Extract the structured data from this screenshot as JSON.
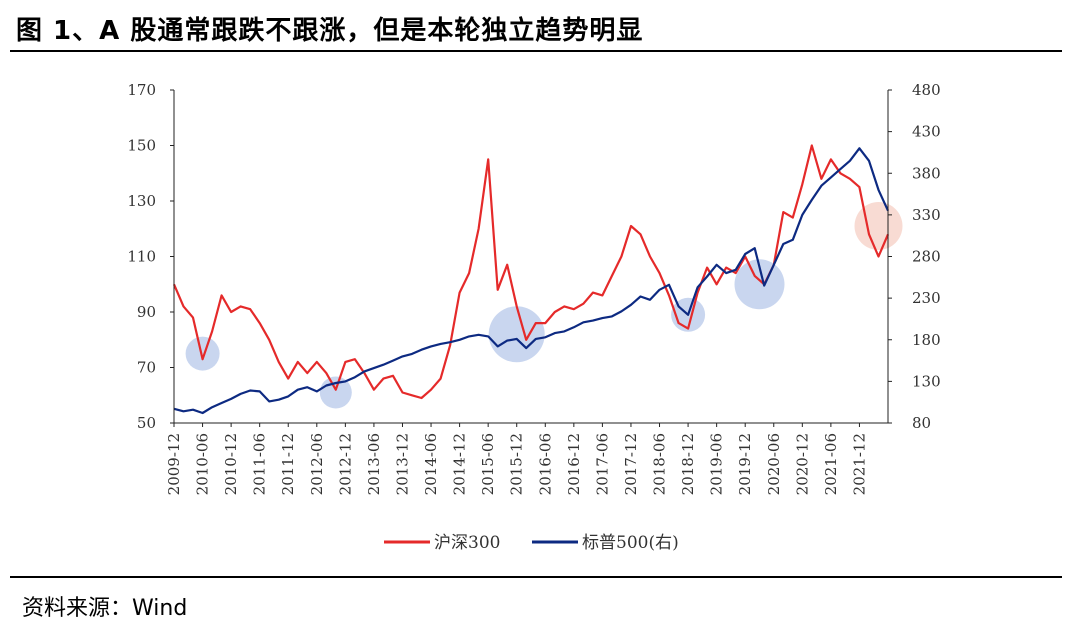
{
  "title": "图 1、A 股通常跟跌不跟涨，但是本轮独立趋势明显",
  "source": "资料来源：Wind",
  "colors": {
    "csi300": "#e52a2a",
    "sp500": "#0d2a82",
    "highlight_blue": "#b7c8ea",
    "highlight_pink": "#f6cfc4"
  },
  "chart_data": {
    "type": "line",
    "title": "",
    "xlabel": "",
    "ylabel": "",
    "ylabel_right": "",
    "x_ticks": [
      "2009-12",
      "2010-06",
      "2010-12",
      "2011-06",
      "2011-12",
      "2012-06",
      "2012-12",
      "2013-06",
      "2013-12",
      "2014-06",
      "2014-12",
      "2015-06",
      "2015-12",
      "2016-06",
      "2016-12",
      "2017-06",
      "2017-12",
      "2018-06",
      "2018-12",
      "2019-06",
      "2019-12",
      "2020-06",
      "2020-12",
      "2021-06",
      "2021-12"
    ],
    "y_left": {
      "min": 50,
      "max": 170,
      "ticks": [
        50,
        70,
        90,
        110,
        130,
        150,
        170
      ]
    },
    "y_right": {
      "min": 80,
      "max": 480,
      "ticks": [
        80,
        130,
        180,
        230,
        280,
        330,
        380,
        430,
        480
      ]
    },
    "legend_position": "bottom-center",
    "grid": false,
    "series": [
      {
        "name": "沪深300",
        "axis": "left",
        "color": "#e52a2a",
        "x": [
          "2009-12",
          "2010-02",
          "2010-04",
          "2010-06",
          "2010-08",
          "2010-10",
          "2010-12",
          "2011-02",
          "2011-04",
          "2011-06",
          "2011-08",
          "2011-10",
          "2011-12",
          "2012-02",
          "2012-04",
          "2012-06",
          "2012-08",
          "2012-10",
          "2012-12",
          "2013-02",
          "2013-04",
          "2013-06",
          "2013-08",
          "2013-10",
          "2013-12",
          "2014-02",
          "2014-04",
          "2014-06",
          "2014-08",
          "2014-10",
          "2014-12",
          "2015-02",
          "2015-04",
          "2015-06",
          "2015-08",
          "2015-10",
          "2015-12",
          "2016-02",
          "2016-04",
          "2016-06",
          "2016-08",
          "2016-10",
          "2016-12",
          "2017-02",
          "2017-04",
          "2017-06",
          "2017-08",
          "2017-10",
          "2017-12",
          "2018-02",
          "2018-04",
          "2018-06",
          "2018-08",
          "2018-10",
          "2018-12",
          "2019-02",
          "2019-04",
          "2019-06",
          "2019-08",
          "2019-10",
          "2019-12",
          "2020-02",
          "2020-04",
          "2020-06",
          "2020-08",
          "2020-10",
          "2020-12",
          "2021-02",
          "2021-04",
          "2021-06",
          "2021-08",
          "2021-10",
          "2021-12",
          "2022-02",
          "2022-04",
          "2022-06"
        ],
        "y": [
          100,
          92,
          88,
          73,
          83,
          96,
          90,
          92,
          91,
          86,
          80,
          72,
          66,
          72,
          68,
          72,
          68,
          62,
          72,
          73,
          68,
          62,
          66,
          67,
          61,
          60,
          59,
          62,
          66,
          78,
          97,
          104,
          120,
          145,
          98,
          107,
          92,
          80,
          86,
          86,
          90,
          92,
          91,
          93,
          97,
          96,
          103,
          110,
          121,
          118,
          110,
          104,
          96,
          86,
          84,
          97,
          106,
          100,
          106,
          104,
          110,
          103,
          100,
          107,
          126,
          124,
          136,
          150,
          138,
          145,
          140,
          138,
          135,
          118,
          110,
          118
        ]
      },
      {
        "name": "标普500(右)",
        "axis": "right",
        "color": "#0d2a82",
        "x": [
          "2009-12",
          "2010-02",
          "2010-04",
          "2010-06",
          "2010-08",
          "2010-10",
          "2010-12",
          "2011-02",
          "2011-04",
          "2011-06",
          "2011-08",
          "2011-10",
          "2011-12",
          "2012-02",
          "2012-04",
          "2012-06",
          "2012-08",
          "2012-10",
          "2012-12",
          "2013-02",
          "2013-04",
          "2013-06",
          "2013-08",
          "2013-10",
          "2013-12",
          "2014-02",
          "2014-04",
          "2014-06",
          "2014-08",
          "2014-10",
          "2014-12",
          "2015-02",
          "2015-04",
          "2015-06",
          "2015-08",
          "2015-10",
          "2015-12",
          "2016-02",
          "2016-04",
          "2016-06",
          "2016-08",
          "2016-10",
          "2016-12",
          "2017-02",
          "2017-04",
          "2017-06",
          "2017-08",
          "2017-10",
          "2017-12",
          "2018-02",
          "2018-04",
          "2018-06",
          "2018-08",
          "2018-10",
          "2018-12",
          "2019-02",
          "2019-04",
          "2019-06",
          "2019-08",
          "2019-10",
          "2019-12",
          "2020-02",
          "2020-04",
          "2020-06",
          "2020-08",
          "2020-10",
          "2020-12",
          "2021-02",
          "2021-04",
          "2021-06",
          "2021-08",
          "2021-10",
          "2021-12",
          "2022-02",
          "2022-04",
          "2022-06"
        ],
        "y": [
          97,
          94,
          96,
          92,
          99,
          104,
          109,
          115,
          119,
          118,
          106,
          108,
          112,
          120,
          123,
          118,
          125,
          128,
          130,
          135,
          142,
          146,
          150,
          155,
          160,
          163,
          168,
          172,
          175,
          177,
          180,
          184,
          186,
          184,
          172,
          179,
          181,
          170,
          181,
          183,
          188,
          190,
          195,
          201,
          203,
          206,
          208,
          214,
          222,
          232,
          228,
          240,
          246,
          220,
          210,
          243,
          256,
          270,
          260,
          264,
          283,
          290,
          245,
          270,
          295,
          300,
          330,
          348,
          365,
          375,
          385,
          395,
          410,
          395,
          360,
          335
        ]
      }
    ],
    "annotations": [
      {
        "shape": "circle",
        "color": "blue",
        "x": "2010-06",
        "y_left": 75
      },
      {
        "shape": "circle",
        "color": "blue",
        "x": "2012-10",
        "y_left": 61
      },
      {
        "shape": "circle",
        "color": "blue",
        "x": "2015-12",
        "y_left": 82
      },
      {
        "shape": "circle",
        "color": "blue",
        "x": "2018-12",
        "y_left": 89
      },
      {
        "shape": "circle",
        "color": "blue",
        "x": "2020-03",
        "y_left": 100
      },
      {
        "shape": "circle",
        "color": "pink",
        "x": "2022-04",
        "y_left": 121
      }
    ]
  }
}
